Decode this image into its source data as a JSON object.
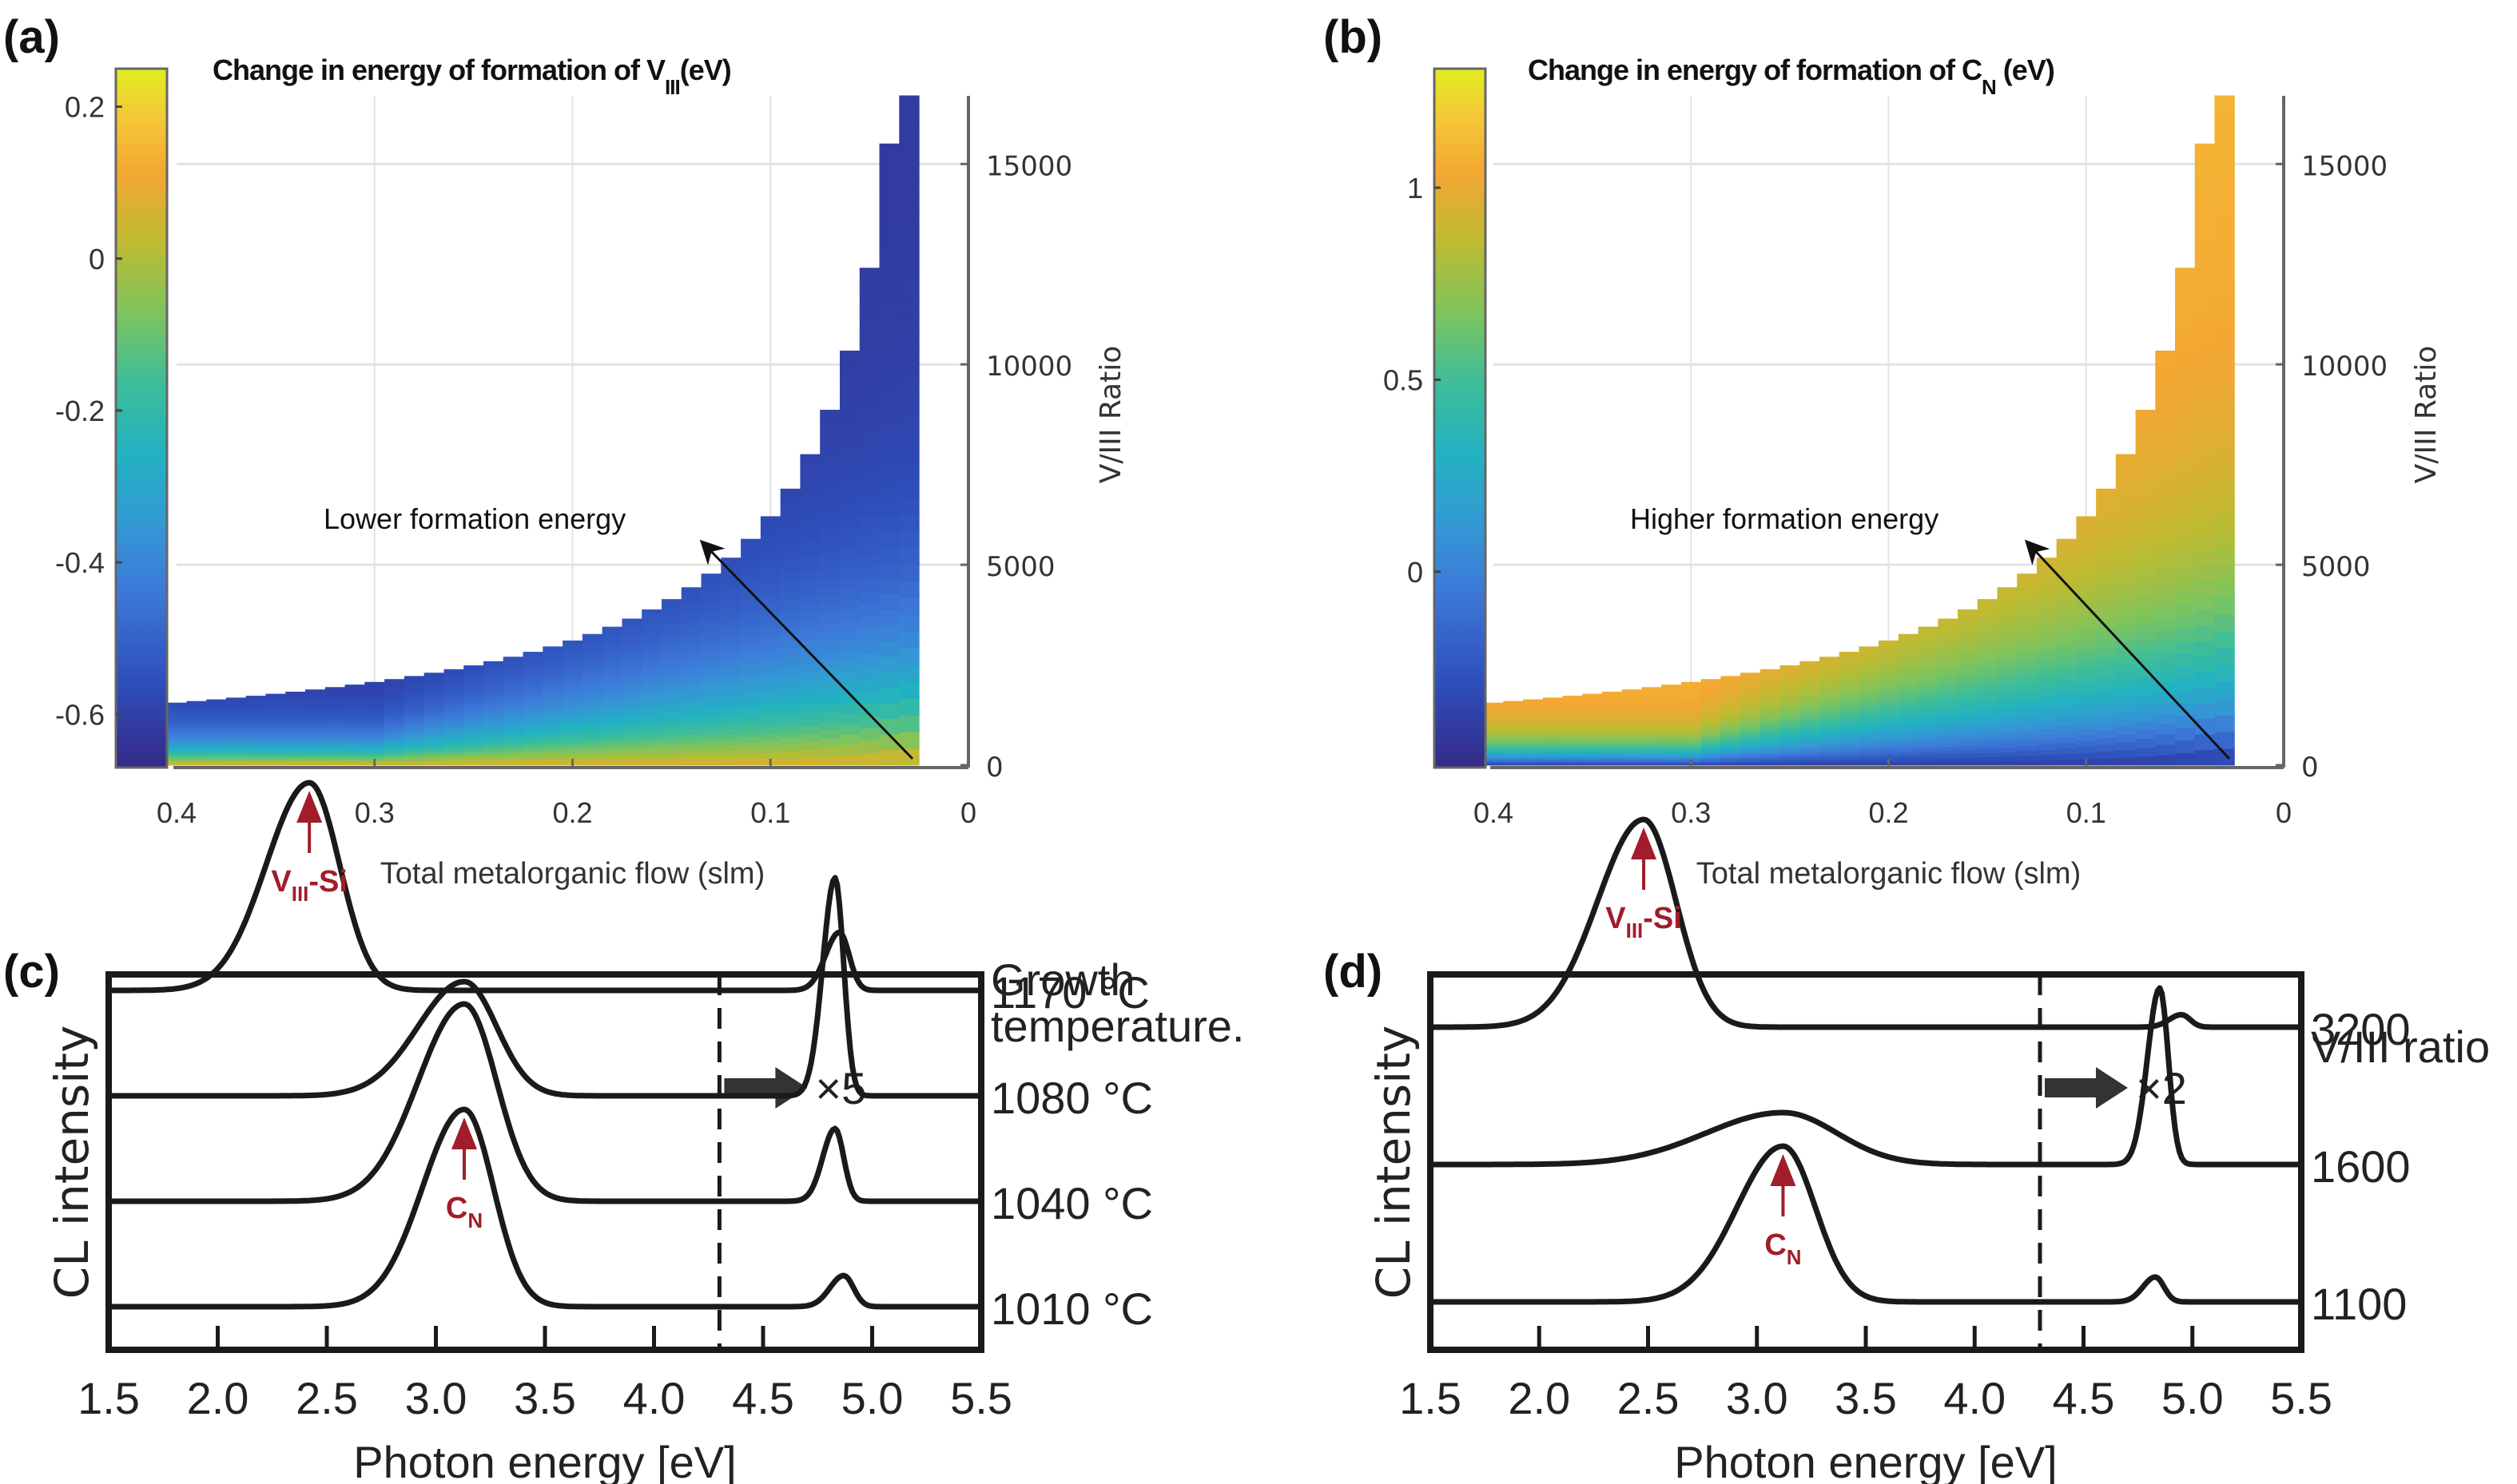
{
  "chart_data": [
    {
      "panel": "(a)",
      "type": "heatmap",
      "title": "Change in energy of formation of V_III (eV)",
      "title_main": "Change in energy of formation of V",
      "title_sub": "III",
      "title_tail": "(eV)",
      "xlabel": "Total metalorganic flow (slm)",
      "ylabel_right": "V/III Ratio",
      "x_ticks": [
        "0.4",
        "0.3",
        "0.2",
        "0.1",
        "0"
      ],
      "x_tick_values": [
        0.4,
        0.3,
        0.2,
        0.1,
        0
      ],
      "xlim": [
        0.4,
        0
      ],
      "y_ticks": [
        "0",
        "5000",
        "10000",
        "15000"
      ],
      "y_tick_values": [
        0,
        5000,
        10000,
        15000
      ],
      "ylim": [
        0,
        16700
      ],
      "colorbar": {
        "ticks": [
          "0.2",
          "0",
          "-0.2",
          "-0.4",
          "-0.6"
        ],
        "tick_values": [
          0.2,
          0,
          -0.2,
          -0.4,
          -0.6
        ],
        "range": [
          -0.67,
          0.25
        ],
        "colormap": "parula"
      },
      "flow_range": [
        0.03,
        0.4
      ],
      "flow_step": 0.01,
      "vIII_boundary_constant": 620,
      "value_trend": "decreasing with V/III ratio; highest (~0.1) at lowest V/III near low flow, ~-0.6 at high V/III",
      "annotation": "Lower formation energy",
      "grid": true
    },
    {
      "panel": "(b)",
      "type": "heatmap",
      "title": "Change in energy of formation of C_N (eV)",
      "title_main": "Change in energy of formation of C",
      "title_sub": "N",
      "title_tail": " (eV)",
      "xlabel": "Total metalorganic flow (slm)",
      "ylabel_right": "V/III Ratio",
      "x_ticks": [
        "0.4",
        "0.3",
        "0.2",
        "0.1",
        "0"
      ],
      "x_tick_values": [
        0.4,
        0.3,
        0.2,
        0.1,
        0
      ],
      "xlim": [
        0.4,
        0
      ],
      "y_ticks": [
        "0",
        "5000",
        "10000",
        "15000"
      ],
      "y_tick_values": [
        0,
        5000,
        10000,
        15000
      ],
      "ylim": [
        0,
        16700
      ],
      "colorbar": {
        "ticks": [
          "1",
          "0.5",
          "0"
        ],
        "tick_values": [
          1,
          0.5,
          0
        ],
        "range": [
          -0.51,
          1.31
        ],
        "colormap": "parula"
      },
      "flow_range": [
        0.03,
        0.4
      ],
      "flow_step": 0.01,
      "vIII_boundary_constant": 620,
      "value_trend": "increasing with V/III ratio; ~-0.4 at lowest V/III near low flow, ~1.0 at high V/III",
      "annotation": "Higher formation energy",
      "grid": true
    },
    {
      "panel": "(c)",
      "type": "line",
      "xlabel": "Photon energy [eV]",
      "ylabel": "CL intensity",
      "x_ticks": [
        "1.5",
        "2.0",
        "2.5",
        "3.0",
        "3.5",
        "4.0",
        "4.5",
        "5.0",
        "5.5"
      ],
      "xlim": [
        1.5,
        5.5
      ],
      "divider_x": 4.3,
      "scale_note": "×5",
      "legend_title": [
        "Growth",
        "temperature."
      ],
      "series": [
        {
          "name": "1170 °C",
          "offset": 3,
          "peaks": [
            {
              "center": 2.42,
              "height": 1.0,
              "width": 0.28
            },
            {
              "center": 4.85,
              "height": 0.28,
              "width": 0.09
            }
          ]
        },
        {
          "name": "1080 °C",
          "offset": 2,
          "peaks": [
            {
              "center": 3.13,
              "height": 0.55,
              "width": 0.3
            },
            {
              "center": 4.83,
              "height": 1.05,
              "width": 0.08
            }
          ]
        },
        {
          "name": "1040 °C",
          "offset": 1,
          "peaks": [
            {
              "center": 3.13,
              "height": 0.95,
              "width": 0.3
            },
            {
              "center": 4.83,
              "height": 0.35,
              "width": 0.08
            }
          ]
        },
        {
          "name": "1010 °C",
          "offset": 0,
          "peaks": [
            {
              "center": 3.13,
              "height": 0.95,
              "width": 0.27
            },
            {
              "center": 4.87,
              "height": 0.15,
              "width": 0.09
            }
          ]
        }
      ],
      "annotations": [
        {
          "text_main": "V",
          "text_sub": "III",
          "text_tail": "-Si",
          "x": 2.42,
          "series": "1170 °C"
        },
        {
          "text_main": "C",
          "text_sub": "N",
          "text_tail": "",
          "x": 3.13,
          "series": "1010 °C"
        }
      ]
    },
    {
      "panel": "(d)",
      "type": "line",
      "xlabel": "Photon energy [eV]",
      "ylabel": "CL intensity",
      "x_ticks": [
        "1.5",
        "2.0",
        "2.5",
        "3.0",
        "3.5",
        "4.0",
        "4.5",
        "5.0",
        "5.5"
      ],
      "xlim": [
        1.5,
        5.5
      ],
      "divider_x": 4.3,
      "scale_note": "×2",
      "legend_title": [
        "V/III ratio"
      ],
      "series": [
        {
          "name": "3200",
          "offset": 2,
          "peaks": [
            {
              "center": 2.48,
              "height": 1.0,
              "width": 0.3
            },
            {
              "center": 4.95,
              "height": 0.06,
              "width": 0.08
            }
          ]
        },
        {
          "name": "1600",
          "offset": 1,
          "peaks": [
            {
              "center": 3.12,
              "height": 0.25,
              "width": 0.5
            },
            {
              "center": 4.85,
              "height": 0.85,
              "width": 0.08
            }
          ]
        },
        {
          "name": "1100",
          "offset": 0,
          "peaks": [
            {
              "center": 3.12,
              "height": 0.75,
              "width": 0.3
            },
            {
              "center": 4.83,
              "height": 0.12,
              "width": 0.08
            }
          ]
        }
      ],
      "annotations": [
        {
          "text_main": "V",
          "text_sub": "III",
          "text_tail": "-Si",
          "x": 2.48,
          "series": "3200"
        },
        {
          "text_main": "C",
          "text_sub": "N",
          "text_tail": "",
          "x": 3.12,
          "series": "1100"
        }
      ]
    }
  ],
  "panel_letters": [
    "(a)",
    "(b)",
    "(c)",
    "(d)"
  ]
}
